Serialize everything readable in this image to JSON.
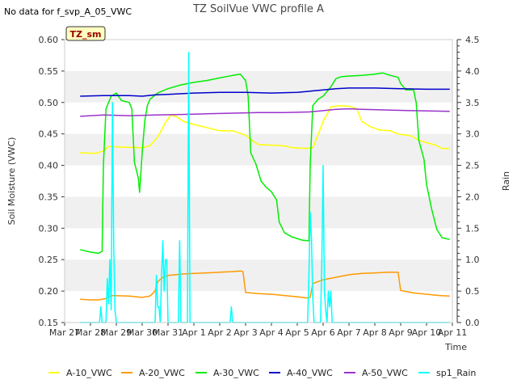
{
  "header": {
    "note": "No data for f_svp_A_05_VWC",
    "title": "TZ SoilVue VWC profile A"
  },
  "chart_data": {
    "type": "line",
    "title": "TZ SoilVue VWC profile A",
    "badge": "TZ_sm",
    "xlabel": "Time",
    "ylabel": "Soil Moisture (VWC)",
    "y2label": "Rain",
    "xlim": [
      0,
      15
    ],
    "ylim": [
      0.15,
      0.6
    ],
    "y2lim": [
      0.0,
      4.5
    ],
    "x_ticks": [
      0,
      1,
      2,
      3,
      4,
      5,
      6,
      7,
      8,
      9,
      10,
      11,
      12,
      13,
      14,
      15
    ],
    "x_tick_labels": [
      "Mar 27",
      "Mar 28",
      "Mar 29",
      "Mar 30",
      "Mar 31",
      "Apr 1",
      "Apr 2",
      "Apr 3",
      "Apr 4",
      "Apr 5",
      "Apr 6",
      "Apr 7",
      "Apr 8",
      "Apr 9",
      "Apr 10",
      "Apr 11"
    ],
    "y_ticks": [
      0.15,
      0.2,
      0.25,
      0.3,
      0.35,
      0.4,
      0.45,
      0.5,
      0.55,
      0.6
    ],
    "y_tick_labels": [
      "0.15",
      "0.20",
      "0.25",
      "0.30",
      "0.35",
      "0.40",
      "0.45",
      "0.50",
      "0.55",
      "0.60"
    ],
    "y2_ticks": [
      0.0,
      0.5,
      1.0,
      1.5,
      2.0,
      2.5,
      3.0,
      3.5,
      4.0,
      4.5
    ],
    "y2_tick_labels": [
      "0.0",
      "0.5",
      "1.0",
      "1.5",
      "2.0",
      "2.5",
      "3.0",
      "3.5",
      "4.0",
      "4.5"
    ],
    "grid": "horizontal bands",
    "legend_position": "bottom",
    "series": [
      {
        "name": "A-10_VWC",
        "color": "#ffff00",
        "axis": "left",
        "points": [
          [
            0.6,
            0.42
          ],
          [
            1.2,
            0.419
          ],
          [
            1.5,
            0.423
          ],
          [
            1.7,
            0.43
          ],
          [
            2.2,
            0.429
          ],
          [
            3.0,
            0.428
          ],
          [
            3.3,
            0.431
          ],
          [
            3.6,
            0.445
          ],
          [
            3.9,
            0.468
          ],
          [
            4.1,
            0.48
          ],
          [
            4.3,
            0.478
          ],
          [
            4.6,
            0.47
          ],
          [
            5.0,
            0.465
          ],
          [
            6.0,
            0.455
          ],
          [
            6.5,
            0.455
          ],
          [
            7.0,
            0.448
          ],
          [
            7.3,
            0.438
          ],
          [
            7.5,
            0.433
          ],
          [
            8.5,
            0.431
          ],
          [
            8.8,
            0.428
          ],
          [
            9.3,
            0.427
          ],
          [
            9.6,
            0.428
          ],
          [
            9.8,
            0.448
          ],
          [
            10.0,
            0.47
          ],
          [
            10.3,
            0.493
          ],
          [
            10.6,
            0.495
          ],
          [
            11.0,
            0.494
          ],
          [
            11.3,
            0.49
          ],
          [
            11.5,
            0.47
          ],
          [
            11.8,
            0.462
          ],
          [
            12.2,
            0.456
          ],
          [
            12.6,
            0.455
          ],
          [
            12.9,
            0.45
          ],
          [
            13.4,
            0.447
          ],
          [
            13.7,
            0.44
          ],
          [
            14.0,
            0.436
          ],
          [
            14.3,
            0.433
          ],
          [
            14.6,
            0.427
          ],
          [
            14.9,
            0.427
          ]
        ]
      },
      {
        "name": "A-20_VWC",
        "color": "#ff9900",
        "axis": "left",
        "points": [
          [
            0.6,
            0.187
          ],
          [
            1.0,
            0.186
          ],
          [
            1.3,
            0.186
          ],
          [
            1.6,
            0.188
          ],
          [
            1.8,
            0.193
          ],
          [
            2.5,
            0.192
          ],
          [
            3.0,
            0.19
          ],
          [
            3.3,
            0.192
          ],
          [
            3.5,
            0.2
          ],
          [
            3.6,
            0.215
          ],
          [
            3.8,
            0.222
          ],
          [
            4.0,
            0.225
          ],
          [
            4.5,
            0.227
          ],
          [
            5.0,
            0.228
          ],
          [
            5.5,
            0.229
          ],
          [
            6.0,
            0.23
          ],
          [
            6.5,
            0.231
          ],
          [
            6.8,
            0.232
          ],
          [
            6.9,
            0.231
          ],
          [
            7.0,
            0.198
          ],
          [
            7.5,
            0.196
          ],
          [
            8.0,
            0.195
          ],
          [
            8.5,
            0.193
          ],
          [
            9.0,
            0.191
          ],
          [
            9.4,
            0.189
          ],
          [
            9.5,
            0.19
          ],
          [
            9.6,
            0.212
          ],
          [
            10.0,
            0.218
          ],
          [
            10.5,
            0.222
          ],
          [
            11.0,
            0.226
          ],
          [
            11.5,
            0.228
          ],
          [
            12.0,
            0.229
          ],
          [
            12.5,
            0.23
          ],
          [
            12.9,
            0.23
          ],
          [
            13.0,
            0.201
          ],
          [
            13.5,
            0.197
          ],
          [
            14.0,
            0.195
          ],
          [
            14.5,
            0.193
          ],
          [
            14.9,
            0.192
          ]
        ]
      },
      {
        "name": "A-30_VWC",
        "color": "#00ee00",
        "axis": "left",
        "points": [
          [
            0.6,
            0.266
          ],
          [
            1.0,
            0.262
          ],
          [
            1.3,
            0.26
          ],
          [
            1.45,
            0.263
          ],
          [
            1.5,
            0.4
          ],
          [
            1.6,
            0.49
          ],
          [
            1.8,
            0.51
          ],
          [
            2.0,
            0.515
          ],
          [
            2.2,
            0.503
          ],
          [
            2.5,
            0.5
          ],
          [
            2.6,
            0.49
          ],
          [
            2.7,
            0.405
          ],
          [
            2.85,
            0.38
          ],
          [
            2.9,
            0.357
          ],
          [
            3.0,
            0.42
          ],
          [
            3.1,
            0.47
          ],
          [
            3.2,
            0.495
          ],
          [
            3.3,
            0.505
          ],
          [
            3.6,
            0.515
          ],
          [
            4.0,
            0.522
          ],
          [
            4.5,
            0.528
          ],
          [
            5.0,
            0.532
          ],
          [
            5.5,
            0.535
          ],
          [
            6.0,
            0.539
          ],
          [
            6.5,
            0.543
          ],
          [
            6.8,
            0.545
          ],
          [
            7.0,
            0.535
          ],
          [
            7.1,
            0.51
          ],
          [
            7.2,
            0.42
          ],
          [
            7.4,
            0.402
          ],
          [
            7.6,
            0.375
          ],
          [
            7.8,
            0.365
          ],
          [
            8.0,
            0.358
          ],
          [
            8.2,
            0.345
          ],
          [
            8.3,
            0.31
          ],
          [
            8.5,
            0.293
          ],
          [
            8.8,
            0.286
          ],
          [
            9.2,
            0.281
          ],
          [
            9.45,
            0.28
          ],
          [
            9.5,
            0.4
          ],
          [
            9.6,
            0.495
          ],
          [
            9.8,
            0.505
          ],
          [
            10.0,
            0.51
          ],
          [
            10.3,
            0.525
          ],
          [
            10.5,
            0.538
          ],
          [
            10.7,
            0.541
          ],
          [
            11.0,
            0.542
          ],
          [
            11.5,
            0.543
          ],
          [
            12.0,
            0.545
          ],
          [
            12.3,
            0.547
          ],
          [
            12.6,
            0.543
          ],
          [
            12.9,
            0.54
          ],
          [
            13.0,
            0.53
          ],
          [
            13.2,
            0.52
          ],
          [
            13.5,
            0.52
          ],
          [
            13.6,
            0.5
          ],
          [
            13.7,
            0.44
          ],
          [
            13.9,
            0.41
          ],
          [
            14.0,
            0.37
          ],
          [
            14.2,
            0.33
          ],
          [
            14.4,
            0.298
          ],
          [
            14.6,
            0.285
          ],
          [
            14.9,
            0.282
          ]
        ]
      },
      {
        "name": "A-40_VWC",
        "color": "#0000cc",
        "axis": "left",
        "points": [
          [
            0.6,
            0.51
          ],
          [
            1.5,
            0.511
          ],
          [
            2.5,
            0.511
          ],
          [
            3.0,
            0.51
          ],
          [
            3.5,
            0.512
          ],
          [
            4.0,
            0.513
          ],
          [
            5.0,
            0.515
          ],
          [
            6.0,
            0.516
          ],
          [
            7.0,
            0.516
          ],
          [
            8.0,
            0.515
          ],
          [
            9.0,
            0.516
          ],
          [
            9.5,
            0.518
          ],
          [
            10.0,
            0.52
          ],
          [
            10.5,
            0.522
          ],
          [
            11.0,
            0.523
          ],
          [
            12.0,
            0.523
          ],
          [
            13.0,
            0.522
          ],
          [
            14.0,
            0.521
          ],
          [
            14.9,
            0.521
          ]
        ]
      },
      {
        "name": "A-50_VWC",
        "color": "#9933cc",
        "axis": "left",
        "points": [
          [
            0.6,
            0.478
          ],
          [
            1.5,
            0.48
          ],
          [
            2.5,
            0.479
          ],
          [
            3.5,
            0.48
          ],
          [
            4.5,
            0.481
          ],
          [
            5.5,
            0.482
          ],
          [
            6.5,
            0.483
          ],
          [
            7.5,
            0.484
          ],
          [
            8.5,
            0.484
          ],
          [
            9.5,
            0.485
          ],
          [
            10.0,
            0.487
          ],
          [
            10.5,
            0.489
          ],
          [
            11.0,
            0.49
          ],
          [
            11.5,
            0.489
          ],
          [
            12.5,
            0.488
          ],
          [
            13.5,
            0.487
          ],
          [
            14.9,
            0.486
          ]
        ]
      },
      {
        "name": "sp1_Rain",
        "color": "#00ffff",
        "axis": "right",
        "points": [
          [
            0.6,
            0
          ],
          [
            1.35,
            0
          ],
          [
            1.4,
            0.25
          ],
          [
            1.45,
            0
          ],
          [
            1.6,
            0
          ],
          [
            1.65,
            0.7
          ],
          [
            1.7,
            0.3
          ],
          [
            1.75,
            1.0
          ],
          [
            1.8,
            0.2
          ],
          [
            1.85,
            3.5
          ],
          [
            1.9,
            1.2
          ],
          [
            1.95,
            0.2
          ],
          [
            2.0,
            0
          ],
          [
            3.5,
            0
          ],
          [
            3.55,
            0.75
          ],
          [
            3.6,
            0.25
          ],
          [
            3.65,
            0.25
          ],
          [
            3.7,
            0
          ],
          [
            3.75,
            0.75
          ],
          [
            3.8,
            1.3
          ],
          [
            3.85,
            0.5
          ],
          [
            3.9,
            1.0
          ],
          [
            3.95,
            1.0
          ],
          [
            4.0,
            0
          ],
          [
            4.4,
            0
          ],
          [
            4.45,
            1.3
          ],
          [
            4.5,
            0
          ],
          [
            4.75,
            0
          ],
          [
            4.8,
            4.3
          ],
          [
            4.85,
            0
          ],
          [
            6.4,
            0
          ],
          [
            6.45,
            0.25
          ],
          [
            6.5,
            0
          ],
          [
            9.4,
            0
          ],
          [
            9.45,
            0.75
          ],
          [
            9.5,
            1.75
          ],
          [
            9.55,
            1.3
          ],
          [
            9.6,
            0.4
          ],
          [
            9.65,
            0
          ],
          [
            9.9,
            0
          ],
          [
            9.95,
            1.0
          ],
          [
            10.0,
            2.5
          ],
          [
            10.05,
            0.5
          ],
          [
            10.1,
            0.2
          ],
          [
            10.15,
            0
          ],
          [
            10.2,
            0.5
          ],
          [
            10.25,
            0.25
          ],
          [
            10.3,
            0.5
          ],
          [
            10.35,
            0
          ],
          [
            14.9,
            0
          ]
        ]
      }
    ]
  }
}
